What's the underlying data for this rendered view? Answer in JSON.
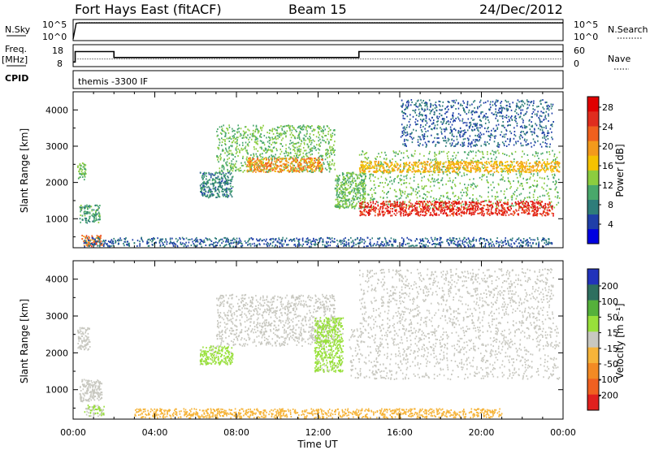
{
  "header": {
    "station": "Fort Hays East (fitACF)",
    "beam": "Beam 15",
    "date": "24/Dec/2012"
  },
  "colors": {
    "power_scale": [
      "#0000e0",
      "#1f3fa8",
      "#2e7d7a",
      "#49a86b",
      "#8ccd3f",
      "#f5c200",
      "#f39a1b",
      "#f0601e",
      "#e02d1e",
      "#e00000"
    ],
    "velocity_scale": [
      "#2233bb",
      "#2e6f5f",
      "#55b13b",
      "#98e03a",
      "#c8c8c0",
      "#f6b43a",
      "#f38a24",
      "#f06020",
      "#e0201e"
    ]
  },
  "chart_data": [
    {
      "type": "line",
      "panel": "sky-noise",
      "left_label": "N.Sky",
      "right_label": "N.Search",
      "left_ticks": [
        "10^5",
        "10^0"
      ],
      "right_ticks": [
        "10^5",
        "10^0"
      ],
      "x_range_hours": [
        0,
        24
      ],
      "series": [
        {
          "x": [
            0,
            0.15,
            0.3,
            24
          ],
          "y": [
            1,
            120000,
            150000,
            150000
          ],
          "note_style": "solid"
        },
        {
          "x": [
            0.3,
            24
          ],
          "y": [
            200000,
            200000
          ],
          "note_style": "dotted"
        }
      ]
    },
    {
      "type": "line",
      "panel": "frequency",
      "left_label": "Freq.",
      "left_unit": "[MHz]",
      "right_label": "Nave",
      "left_ticks": [
        "18",
        "8"
      ],
      "right_ticks": [
        "60",
        "0"
      ],
      "series": [
        {
          "name": "Freq.",
          "x": [
            0,
            0.1,
            0.1,
            2.0,
            2.0,
            14.0,
            14.0,
            24
          ],
          "y": [
            8,
            8,
            15,
            15,
            11,
            11,
            15,
            15
          ]
        },
        {
          "name": "Nave",
          "x": [
            0.1,
            24
          ],
          "y": [
            20,
            20
          ]
        }
      ]
    },
    {
      "type": "table",
      "panel": "cpid",
      "label": "CPID",
      "program": "themis -3300 IF"
    },
    {
      "type": "heatmap",
      "panel": "power",
      "ylabel": "Slant Range [km]",
      "xlim_hours": [
        0,
        24
      ],
      "ylim": [
        200,
        4500
      ],
      "yticks": [
        1000,
        2000,
        3000,
        4000
      ],
      "colorbar": {
        "label": "Power [dB]",
        "ticks": [
          "4",
          "8",
          "12",
          "16",
          "20",
          "24",
          "28"
        ],
        "range": [
          0,
          30
        ]
      },
      "scatter_regions": [
        {
          "x0": 0.2,
          "x1": 0.6,
          "y0": 2100,
          "y1": 2600,
          "value": 12
        },
        {
          "x0": 0.3,
          "x1": 1.3,
          "y0": 900,
          "y1": 1400,
          "value": 10
        },
        {
          "x0": 0.4,
          "x1": 1.4,
          "y0": 260,
          "y1": 560,
          "value": 22
        },
        {
          "x0": 6.2,
          "x1": 7.8,
          "y0": 1600,
          "y1": 2300,
          "value": 8
        },
        {
          "x0": 7.0,
          "x1": 12.8,
          "y0": 2300,
          "y1": 3600,
          "value": 12
        },
        {
          "x0": 8.5,
          "x1": 12.2,
          "y0": 2300,
          "y1": 2700,
          "value": 20
        },
        {
          "x0": 12.8,
          "x1": 14.3,
          "y0": 1300,
          "y1": 2300,
          "value": 12
        },
        {
          "x0": 14.0,
          "x1": 23.8,
          "y0": 1300,
          "y1": 2900,
          "value": 12
        },
        {
          "x0": 14.0,
          "x1": 23.5,
          "y0": 1100,
          "y1": 1500,
          "value": 26
        },
        {
          "x0": 14.0,
          "x1": 23.8,
          "y0": 2300,
          "y1": 2600,
          "value": 18
        },
        {
          "x0": 16.0,
          "x1": 23.5,
          "y0": 3000,
          "y1": 4300,
          "value": 6
        },
        {
          "x0": 0.5,
          "x1": 23.5,
          "y0": 250,
          "y1": 500,
          "value": 6
        }
      ]
    },
    {
      "type": "heatmap",
      "panel": "velocity",
      "ylabel": "Slant Range [km]",
      "xlabel": "Time UT",
      "xlim_hours": [
        0,
        24
      ],
      "ylim": [
        200,
        4500
      ],
      "yticks": [
        1000,
        2000,
        3000,
        4000
      ],
      "xticks": [
        "00:00",
        "04:00",
        "08:00",
        "12:00",
        "16:00",
        "20:00",
        "00:00"
      ],
      "colorbar": {
        "label": "Velocity [m s⁻¹]",
        "ticks": [
          "200",
          "100",
          "50",
          "15",
          "-15",
          "-50",
          "-100",
          "-200"
        ],
        "range": [
          -250,
          250
        ]
      },
      "scatter_regions": [
        {
          "x0": 0.2,
          "x1": 0.8,
          "y0": 2100,
          "y1": 2700,
          "value": 0
        },
        {
          "x0": 0.3,
          "x1": 1.4,
          "y0": 700,
          "y1": 1300,
          "value": 0
        },
        {
          "x0": 0.5,
          "x1": 1.5,
          "y0": 300,
          "y1": 600,
          "value": 30
        },
        {
          "x0": 6.2,
          "x1": 7.8,
          "y0": 1700,
          "y1": 2200,
          "value": 40
        },
        {
          "x0": 7.0,
          "x1": 12.8,
          "y0": 2200,
          "y1": 3600,
          "value": 0
        },
        {
          "x0": 11.8,
          "x1": 13.2,
          "y0": 1500,
          "y1": 3000,
          "value": 40
        },
        {
          "x0": 13.5,
          "x1": 23.8,
          "y0": 1300,
          "y1": 2800,
          "value": 0
        },
        {
          "x0": 14.0,
          "x1": 23.5,
          "y0": 2800,
          "y1": 4300,
          "value": 0
        },
        {
          "x0": 3.0,
          "x1": 21.0,
          "y0": 250,
          "y1": 500,
          "value": -60
        }
      ]
    }
  ]
}
